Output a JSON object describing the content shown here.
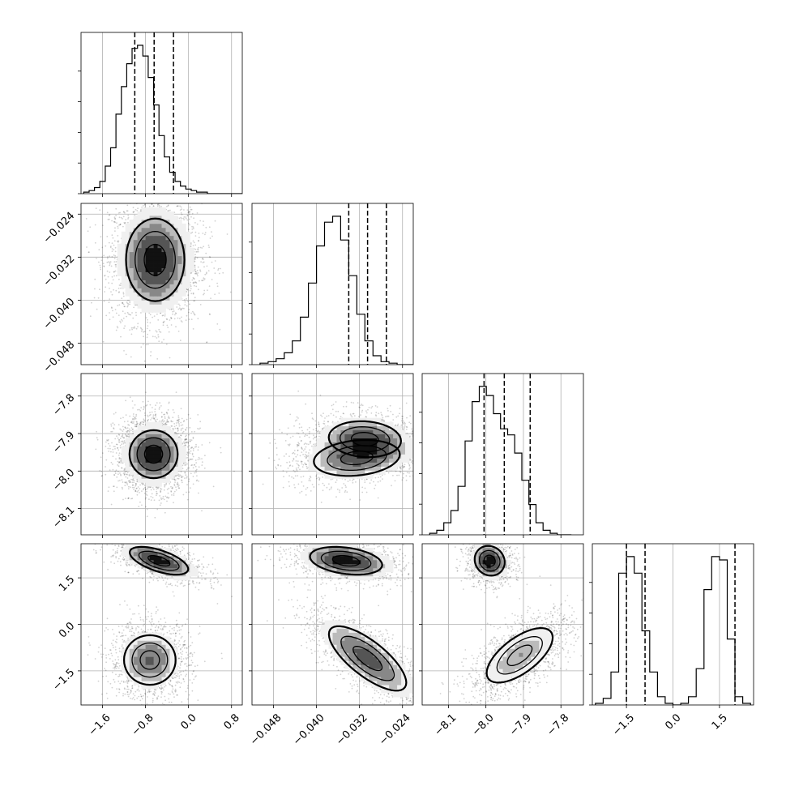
{
  "chart_data": {
    "type": "corner",
    "title": "",
    "parameters": [
      {
        "range": [
          -2.0,
          1.0
        ],
        "ticks": [
          -1.6,
          -0.8,
          0.0,
          0.8
        ],
        "tick_labels": [
          "−1.6",
          "−0.8",
          "0.0",
          "0.8"
        ],
        "quantiles": [
          -1.0,
          -0.64,
          -0.28
        ]
      },
      {
        "range": [
          -0.052,
          -0.022
        ],
        "ticks": [
          -0.048,
          -0.04,
          -0.032,
          -0.024
        ],
        "tick_labels": [
          "−0.048",
          "−0.040",
          "−0.032",
          "−0.024"
        ],
        "quantiles": [
          -0.034,
          -0.0305,
          -0.027
        ]
      },
      {
        "range": [
          -8.17,
          -7.74
        ],
        "ticks": [
          -8.1,
          -8.0,
          -7.9,
          -7.8
        ],
        "tick_labels": [
          "−8.1",
          "−8.0",
          "−7.9",
          "−7.8"
        ],
        "quantiles": [
          -8.005,
          -7.951,
          -7.882
        ]
      },
      {
        "range": [
          -2.6,
          2.6
        ],
        "ticks": [
          -1.5,
          0.0,
          1.5
        ],
        "tick_labels": [
          "−1.5",
          "0.0",
          "1.5"
        ],
        "quantiles": [
          -1.5,
          -0.9,
          2.0
        ]
      }
    ],
    "histograms": [
      {
        "min": -1.95,
        "step": 0.1,
        "counts": [
          1,
          2,
          4,
          8,
          18,
          30,
          52,
          70,
          85,
          95,
          97,
          90,
          76,
          58,
          38,
          24,
          14,
          8,
          5,
          3,
          2,
          1,
          1,
          0,
          0,
          0,
          0,
          0,
          0,
          0
        ]
      },
      {
        "min": -0.0505,
        "step": 0.0015,
        "counts": [
          1,
          2,
          4,
          8,
          16,
          32,
          55,
          80,
          96,
          100,
          84,
          60,
          34,
          16,
          6,
          2,
          1,
          0,
          0,
          0
        ]
      },
      {
        "min": -8.15,
        "step": 0.0189,
        "counts": [
          1,
          3,
          8,
          16,
          32,
          62,
          88,
          98,
          92,
          80,
          70,
          66,
          54,
          36,
          20,
          8,
          3,
          1,
          0,
          0
        ]
      },
      {
        "min": -2.5,
        "step": 0.25,
        "counts": [
          1,
          4,
          20,
          80,
          90,
          80,
          45,
          20,
          5,
          1,
          0,
          1,
          5,
          22,
          70,
          90,
          88,
          40,
          5,
          1
        ]
      }
    ],
    "pairs": [
      {
        "x": 0,
        "y": 1,
        "blobs": [
          {
            "mx": -0.62,
            "my": -0.0325,
            "sx": 0.34,
            "sy": 0.0048,
            "rho": 0.0,
            "w": 1.0
          }
        ]
      },
      {
        "x": 0,
        "y": 2,
        "blobs": [
          {
            "mx": -0.65,
            "my": -7.955,
            "sx": 0.28,
            "sy": 0.04,
            "rho": 0.0,
            "w": 1.0
          }
        ]
      },
      {
        "x": 1,
        "y": 2,
        "blobs": [
          {
            "mx": -0.031,
            "my": -7.915,
            "sx": 0.0042,
            "sy": 0.03,
            "rho": -0.1,
            "w": 0.5
          },
          {
            "mx": -0.0325,
            "my": -7.965,
            "sx": 0.005,
            "sy": 0.03,
            "rho": 0.2,
            "w": 0.5
          }
        ]
      },
      {
        "x": 0,
        "y": 3,
        "blobs": [
          {
            "mx": -0.55,
            "my": 2.05,
            "sx": 0.34,
            "sy": 0.28,
            "rho": -0.6,
            "w": 0.45
          },
          {
            "mx": -0.72,
            "my": -1.15,
            "sx": 0.3,
            "sy": 0.5,
            "rho": 0.0,
            "w": 0.55
          }
        ]
      },
      {
        "x": 1,
        "y": 3,
        "blobs": [
          {
            "mx": -0.0345,
            "my": 2.05,
            "sx": 0.0042,
            "sy": 0.28,
            "rho": -0.3,
            "w": 0.45
          },
          {
            "mx": -0.0305,
            "my": -1.1,
            "sx": 0.0045,
            "sy": 0.65,
            "rho": -0.75,
            "w": 0.55
          }
        ]
      },
      {
        "x": 2,
        "y": 3,
        "blobs": [
          {
            "mx": -7.99,
            "my": 2.05,
            "sx": 0.025,
            "sy": 0.3,
            "rho": -0.1,
            "w": 0.45
          },
          {
            "mx": -7.91,
            "my": -1.0,
            "sx": 0.055,
            "sy": 0.55,
            "rho": 0.65,
            "w": 0.55
          }
        ]
      }
    ],
    "grid": true
  }
}
